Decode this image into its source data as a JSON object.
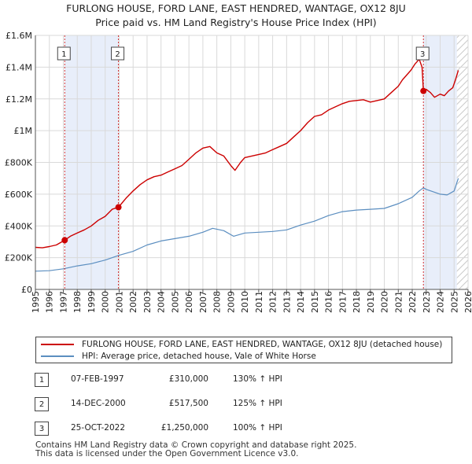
{
  "title_line1": "FURLONG HOUSE, FORD LANE, EAST HENDRED, WANTAGE, OX12 8JU",
  "title_line2": "Price paid vs. HM Land Registry's House Price Index (HPI)",
  "colors": {
    "red": "#cc0000",
    "blue": "#5b8ec0",
    "shade": "#e8eefa",
    "grid": "#d9d9d9"
  },
  "chart_data": {
    "type": "line",
    "xlabel": "",
    "ylabel": "",
    "xlim": [
      1995,
      2026
    ],
    "ylim": [
      0,
      1600000
    ],
    "y_ticks": [
      0,
      200000,
      400000,
      600000,
      800000,
      1000000,
      1200000,
      1400000,
      1600000
    ],
    "y_tick_labels": [
      "£0",
      "£200K",
      "£400K",
      "£600K",
      "£800K",
      "£1M",
      "£1.2M",
      "£1.4M",
      "£1.6M"
    ],
    "x_tick_labels": [
      "1995",
      "1996",
      "1997",
      "1998",
      "1999",
      "2000",
      "2001",
      "2002",
      "2003",
      "2004",
      "2005",
      "2006",
      "2007",
      "2008",
      "2009",
      "2010",
      "2011",
      "2012",
      "2013",
      "2014",
      "2015",
      "2016",
      "2017",
      "2018",
      "2019",
      "2020",
      "2021",
      "2022",
      "2023",
      "2024",
      "2025",
      "2026"
    ],
    "shaded_periods": [
      [
        1997.1,
        2000.95
      ],
      [
        2022.8,
        2025.2
      ]
    ],
    "hatched_from": 2025.2,
    "series": [
      {
        "name": "FURLONG HOUSE, FORD LANE, EAST HENDRED, WANTAGE, OX12 8JU (detached house)",
        "color": "#cc0000",
        "x": [
          1995,
          1995.5,
          1996,
          1996.5,
          1997.1,
          1997.5,
          1998,
          1998.5,
          1999,
          1999.5,
          2000,
          2000.5,
          2000.95,
          2001.5,
          2002,
          2002.5,
          2003,
          2003.5,
          2004,
          2004.5,
          2005,
          2005.5,
          2006,
          2006.5,
          2007,
          2007.5,
          2008,
          2008.5,
          2009,
          2009.3,
          2009.7,
          2010,
          2010.5,
          2011,
          2011.5,
          2012,
          2012.5,
          2013,
          2013.5,
          2014,
          2014.5,
          2015,
          2015.5,
          2016,
          2016.5,
          2017,
          2017.5,
          2018,
          2018.5,
          2019,
          2019.5,
          2020,
          2020.5,
          2021,
          2021.3,
          2021.6,
          2021.9,
          2022.2,
          2022.5,
          2022.7,
          2022.8,
          2023,
          2023.3,
          2023.6,
          2024,
          2024.3,
          2024.6,
          2024.9,
          2025.1,
          2025.3
        ],
        "y": [
          265000,
          262000,
          270000,
          280000,
          310000,
          335000,
          355000,
          375000,
          400000,
          435000,
          460000,
          505000,
          517500,
          575000,
          620000,
          660000,
          690000,
          710000,
          720000,
          740000,
          760000,
          780000,
          820000,
          860000,
          890000,
          900000,
          860000,
          840000,
          780000,
          750000,
          800000,
          830000,
          840000,
          850000,
          860000,
          880000,
          900000,
          920000,
          960000,
          1000000,
          1050000,
          1090000,
          1100000,
          1130000,
          1150000,
          1170000,
          1185000,
          1190000,
          1195000,
          1180000,
          1190000,
          1200000,
          1240000,
          1280000,
          1320000,
          1350000,
          1380000,
          1420000,
          1450000,
          1400000,
          1250000,
          1260000,
          1240000,
          1210000,
          1230000,
          1220000,
          1250000,
          1270000,
          1320000,
          1380000
        ]
      },
      {
        "name": "HPI: Average price, detached house, Vale of White Horse",
        "color": "#5b8ec0",
        "x": [
          1995,
          1996,
          1997,
          1998,
          1999,
          2000,
          2001,
          2002,
          2003,
          2004,
          2005,
          2006,
          2007,
          2007.7,
          2008.5,
          2009.2,
          2010,
          2011,
          2012,
          2013,
          2014,
          2015,
          2016,
          2017,
          2018,
          2019,
          2020,
          2021,
          2022,
          2022.5,
          2022.8,
          2023,
          2023.5,
          2024,
          2024.5,
          2025,
          2025.3
        ],
        "y": [
          115000,
          118000,
          130000,
          148000,
          162000,
          185000,
          215000,
          240000,
          280000,
          305000,
          320000,
          335000,
          360000,
          385000,
          370000,
          335000,
          355000,
          360000,
          365000,
          375000,
          405000,
          430000,
          465000,
          490000,
          500000,
          505000,
          510000,
          540000,
          580000,
          620000,
          640000,
          630000,
          615000,
          600000,
          595000,
          620000,
          700000
        ]
      }
    ],
    "sales": [
      {
        "marker": "1",
        "x": 1997.1,
        "y": 310000
      },
      {
        "marker": "2",
        "x": 2000.95,
        "y": 517500
      },
      {
        "marker": "3",
        "x": 2022.8,
        "y": 1250000
      }
    ]
  },
  "legend": {
    "red_label": "FURLONG HOUSE, FORD LANE, EAST HENDRED, WANTAGE, OX12 8JU (detached house)",
    "blue_label": "HPI: Average price, detached house, Vale of White Horse"
  },
  "sales_table": [
    {
      "num": "1",
      "date": "07-FEB-1997",
      "price": "£310,000",
      "hpi": "130% ↑ HPI"
    },
    {
      "num": "2",
      "date": "14-DEC-2000",
      "price": "£517,500",
      "hpi": "125% ↑ HPI"
    },
    {
      "num": "3",
      "date": "25-OCT-2022",
      "price": "£1,250,000",
      "hpi": "100% ↑ HPI"
    }
  ],
  "footer_line1": "Contains HM Land Registry data © Crown copyright and database right 2025.",
  "footer_line2": "This data is licensed under the Open Government Licence v3.0."
}
